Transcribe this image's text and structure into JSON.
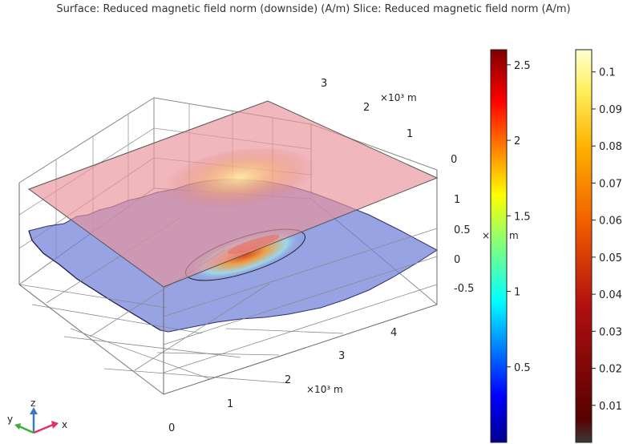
{
  "title": "Surface: Reduced magnetic field norm (downside) (A/m)  Slice: Reduced magnetic field norm (A/m)",
  "axes": {
    "x": {
      "ticks": [
        "0",
        "1",
        "2",
        "3",
        "4"
      ],
      "unit": "×10³ m"
    },
    "y": {
      "ticks": [
        "0",
        "1",
        "2",
        "3"
      ],
      "unit": "×10³ m"
    },
    "z": {
      "ticks": [
        "1",
        "0.5",
        "0",
        "-0.5"
      ],
      "unit": "×10³ m"
    }
  },
  "colorbars": {
    "slice": {
      "ticks": [
        "2.5",
        "2",
        "1.5",
        "1",
        "0.5"
      ],
      "range": [
        0,
        2.6
      ]
    },
    "surface": {
      "ticks": [
        "0.1",
        "0.09",
        "0.08",
        "0.07",
        "0.06",
        "0.05",
        "0.04",
        "0.03",
        "0.02",
        "0.01"
      ],
      "range": [
        0,
        0.106
      ]
    }
  },
  "triad": {
    "x": "x",
    "y": "y",
    "z": "z"
  }
}
